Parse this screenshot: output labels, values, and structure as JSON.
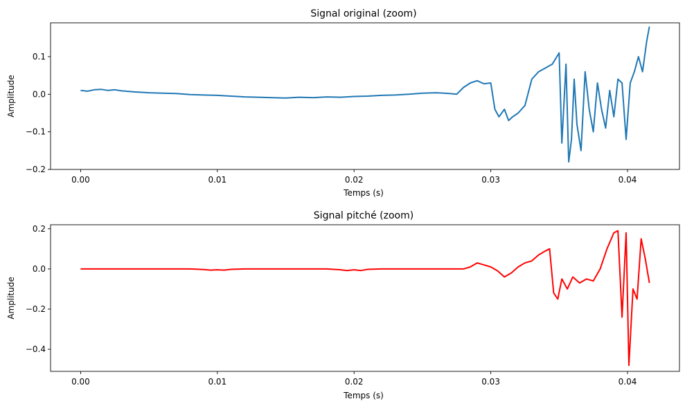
{
  "chart_data": [
    {
      "type": "line",
      "title": "Signal original (zoom)",
      "xlabel": "Temps (s)",
      "ylabel": "Amplitude",
      "xlim": [
        -0.0022,
        0.0438
      ],
      "ylim": [
        -0.2,
        0.19
      ],
      "xticks": [
        0.0,
        0.01,
        0.02,
        0.03,
        0.04
      ],
      "xtick_labels": [
        "0.00",
        "0.01",
        "0.02",
        "0.03",
        "0.04"
      ],
      "yticks": [
        -0.2,
        -0.1,
        0.0,
        0.1
      ],
      "ytick_labels": [
        "−0.2",
        "−0.1",
        "0.0",
        "0.1"
      ],
      "color": "#1f77b4",
      "series": [
        {
          "x": [
            0.0,
            0.0005,
            0.001,
            0.0015,
            0.002,
            0.0025,
            0.003,
            0.004,
            0.005,
            0.006,
            0.007,
            0.008,
            0.009,
            0.01,
            0.011,
            0.012,
            0.013,
            0.014,
            0.015,
            0.016,
            0.017,
            0.018,
            0.019,
            0.02,
            0.021,
            0.022,
            0.023,
            0.024,
            0.025,
            0.026,
            0.027,
            0.0275,
            0.028,
            0.0285,
            0.029,
            0.0295,
            0.03,
            0.0303,
            0.0306,
            0.031,
            0.0313,
            0.0316,
            0.032,
            0.0325,
            0.033,
            0.0335,
            0.034,
            0.0345,
            0.035,
            0.0352,
            0.0355,
            0.0357,
            0.0359,
            0.0361,
            0.0363,
            0.0366,
            0.0369,
            0.0372,
            0.0375,
            0.0378,
            0.0381,
            0.0384,
            0.0387,
            0.039,
            0.0393,
            0.0396,
            0.0399,
            0.0402,
            0.0405,
            0.0408,
            0.0411,
            0.0414,
            0.0416
          ],
          "y": [
            0.01,
            0.008,
            0.012,
            0.013,
            0.01,
            0.012,
            0.009,
            0.006,
            0.004,
            0.003,
            0.002,
            -0.001,
            -0.002,
            -0.003,
            -0.005,
            -0.007,
            -0.008,
            -0.009,
            -0.01,
            -0.008,
            -0.009,
            -0.007,
            -0.008,
            -0.006,
            -0.005,
            -0.003,
            -0.002,
            0.0,
            0.003,
            0.004,
            0.002,
            0.0,
            0.018,
            0.03,
            0.036,
            0.028,
            0.03,
            -0.04,
            -0.06,
            -0.04,
            -0.07,
            -0.06,
            -0.05,
            -0.03,
            0.04,
            0.06,
            0.07,
            0.08,
            0.11,
            -0.13,
            0.08,
            -0.18,
            -0.12,
            0.04,
            -0.08,
            -0.15,
            0.06,
            -0.04,
            -0.1,
            0.03,
            -0.04,
            -0.09,
            0.01,
            -0.06,
            0.04,
            0.03,
            -0.12,
            0.03,
            0.06,
            0.1,
            0.06,
            0.14,
            0.18
          ]
        }
      ]
    },
    {
      "type": "line",
      "title": "Signal pitché (zoom)",
      "xlabel": "Temps (s)",
      "ylabel": "Amplitude",
      "xlim": [
        -0.0022,
        0.0438
      ],
      "ylim": [
        -0.51,
        0.22
      ],
      "xticks": [
        0.0,
        0.01,
        0.02,
        0.03,
        0.04
      ],
      "xtick_labels": [
        "0.00",
        "0.01",
        "0.02",
        "0.03",
        "0.04"
      ],
      "yticks": [
        -0.4,
        -0.2,
        0.0,
        0.2
      ],
      "ytick_labels": [
        "−0.4",
        "−0.2",
        "0.0",
        "0.2"
      ],
      "color": "#ff0000",
      "series": [
        {
          "x": [
            0.0,
            0.002,
            0.004,
            0.006,
            0.008,
            0.009,
            0.0095,
            0.01,
            0.0105,
            0.011,
            0.012,
            0.014,
            0.016,
            0.018,
            0.019,
            0.0195,
            0.02,
            0.0205,
            0.021,
            0.022,
            0.024,
            0.026,
            0.028,
            0.0285,
            0.029,
            0.0295,
            0.03,
            0.0305,
            0.031,
            0.0315,
            0.032,
            0.0325,
            0.033,
            0.0335,
            0.034,
            0.0343,
            0.0346,
            0.0349,
            0.0352,
            0.0356,
            0.036,
            0.0365,
            0.037,
            0.0375,
            0.038,
            0.0385,
            0.039,
            0.0393,
            0.0396,
            0.0399,
            0.0401,
            0.0404,
            0.0407,
            0.041,
            0.0413,
            0.0416
          ],
          "y": [
            0.0,
            0.0,
            0.0,
            0.0,
            0.0,
            -0.003,
            -0.006,
            -0.004,
            -0.006,
            -0.002,
            0.0,
            0.0,
            0.0,
            0.0,
            -0.004,
            -0.008,
            -0.004,
            -0.008,
            -0.002,
            0.0,
            0.0,
            0.0,
            0.0,
            0.01,
            0.03,
            0.02,
            0.01,
            -0.01,
            -0.04,
            -0.02,
            0.01,
            0.03,
            0.04,
            0.07,
            0.09,
            0.1,
            -0.12,
            -0.15,
            -0.05,
            -0.1,
            -0.04,
            -0.07,
            -0.05,
            -0.06,
            0.0,
            0.1,
            0.18,
            0.19,
            -0.24,
            0.18,
            -0.48,
            -0.1,
            -0.15,
            0.15,
            0.05,
            -0.07
          ]
        }
      ]
    }
  ]
}
